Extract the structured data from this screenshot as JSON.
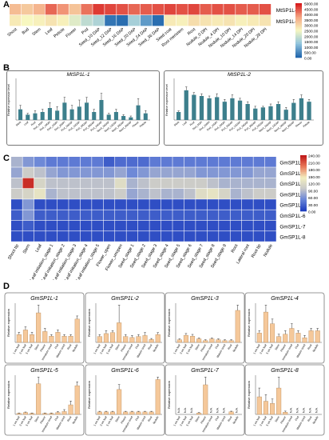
{
  "panels": {
    "a": "A",
    "b": "B",
    "c": "C",
    "d": "D"
  },
  "heatmap_a": {
    "columns": [
      "Shoot",
      "Bud",
      "Stem",
      "Leaf",
      "Petiole",
      "Flower",
      "Pod",
      "Seed_10 DAP",
      "Seed_12 DAP",
      "Seed_16 DAP",
      "Seed_20 DAP",
      "Seed_24 DAP",
      "Seed_36 DAP",
      "Seed coat",
      "Root meristem",
      "Root",
      "Nodule_0 DPI",
      "Nodule_4 DPI",
      "Nodule_10 DPI",
      "Nodule_14 DPI",
      "Nodule_20 DPI",
      "Nodule_28 DPI"
    ],
    "rows": [
      "MtSP1L-1",
      "MtSP1L-2"
    ],
    "values": [
      [
        3400,
        3200,
        3500,
        4300,
        3900,
        3300,
        4200,
        4700,
        4600,
        4500,
        4300,
        4400,
        4500,
        4600,
        4500,
        4600,
        4400,
        4500,
        4500,
        4400,
        4400,
        4500
      ],
      [
        2700,
        2500,
        2600,
        2800,
        2600,
        2200,
        1800,
        1600,
        200,
        100,
        1500,
        700,
        100,
        2700,
        2600,
        2900,
        2800,
        2700,
        2800,
        2600,
        2700,
        2800
      ]
    ],
    "scale_ticks": [
      "5000.00",
      "4500.00",
      "4000.00",
      "3500.00",
      "3000.00",
      "2500.00",
      "2000.00",
      "1500.00",
      "1000.00",
      "500.00",
      "0.00"
    ],
    "colors": [
      "#d7191c",
      "#f4a582",
      "#f7f7c0",
      "#92c5de",
      "#2166ac"
    ]
  },
  "bars_b": [
    {
      "title": "MtSP1L-1",
      "ylabel": "Relative expression level",
      "labels": [
        "Stem",
        "Leaf",
        "Root",
        "Nod_4DPI",
        "Nod_10DPI",
        "Nod_14DPI",
        "Nod_20DPI",
        "Pod_10DAP",
        "Pod_12DAP",
        "Pod_16DAP",
        "Pod_20DAP",
        "Pod_24DAP",
        "Seed_10DAP",
        "Seed_12DAP",
        "Seed_16DAP",
        "Seed_20DAP",
        "Flower",
        "Petiole"
      ],
      "values": [
        0.8,
        0.4,
        0.5,
        0.6,
        0.9,
        0.7,
        1.3,
        0.8,
        1.0,
        1.3,
        0.6,
        1.5,
        0.4,
        0.6,
        0.3,
        0.2,
        1.1,
        0.5
      ],
      "errors": [
        0.3,
        0.1,
        0.2,
        0.2,
        0.4,
        0.3,
        0.4,
        0.3,
        0.5,
        0.4,
        0.2,
        0.5,
        0.1,
        0.2,
        0.1,
        0.1,
        0.5,
        0.2
      ]
    },
    {
      "title": "MtSP1L-2",
      "ylabel": "Relative expression level",
      "labels": [
        "Stem",
        "Leaf",
        "Root",
        "Nod_4DPI",
        "Nod_10DPI",
        "Nod_14DPI",
        "Nod_20DPI",
        "Pod_10DAP",
        "Pod_12DAP",
        "Pod_16DAP",
        "Pod_20DAP",
        "Pod_24DAP",
        "Seed_10DAP",
        "Seed_12DAP",
        "Seed_16DAP",
        "Seed_20DAP",
        "Flower",
        "Petiole"
      ],
      "values": [
        0.7,
        2.6,
        2.2,
        2.1,
        1.9,
        2.0,
        1.6,
        1.9,
        1.7,
        1.4,
        1.0,
        1.1,
        1.2,
        1.4,
        0.9,
        1.5,
        1.9,
        1.6
      ],
      "errors": [
        0.1,
        0.3,
        0.2,
        0.2,
        0.2,
        0.3,
        0.2,
        0.3,
        0.2,
        0.2,
        0.2,
        0.1,
        0.2,
        0.2,
        0.2,
        0.3,
        0.3,
        0.2
      ]
    }
  ],
  "heatmap_c": {
    "columns": [
      "Shoot tip",
      "Stem",
      "Leaf",
      "Leaf initiation_stage 1",
      "Leaf initiation_stage 2",
      "Leaf initiation_stage 3",
      "Leaf initiation_stage 4",
      "Leaf initiation_stage 5",
      "Flower_open",
      "Flower_unopen",
      "Seed_stage 1",
      "Seed_stage 2",
      "Seed_stage 3",
      "Seed_stage 4",
      "Seed_stage 5",
      "Seed_stage 6",
      "Seed_stage 7",
      "Seed_stage 8",
      "Seed_stage 9",
      "Root",
      "Lateral root",
      "Root tip",
      "Nodule"
    ],
    "rows": [
      "GmSP1L-1",
      "GmSP1L-2",
      "GmSP1L-3",
      "GmSP1L-4",
      "GmSP1L-5",
      "GmSP1L-6",
      "GmSP1L-7",
      "GmSP1L-8"
    ],
    "values": [
      [
        80,
        60,
        50,
        40,
        40,
        40,
        40,
        40,
        20,
        30,
        30,
        30,
        40,
        40,
        40,
        40,
        40,
        40,
        40,
        40,
        40,
        40,
        40
      ],
      [
        70,
        100,
        90,
        70,
        60,
        60,
        60,
        60,
        60,
        70,
        50,
        60,
        70,
        70,
        70,
        70,
        60,
        60,
        60,
        60,
        60,
        70,
        70
      ],
      [
        90,
        230,
        110,
        90,
        90,
        90,
        90,
        90,
        90,
        120,
        80,
        90,
        100,
        100,
        100,
        100,
        100,
        90,
        80,
        80,
        80,
        80,
        80
      ],
      [
        100,
        110,
        130,
        80,
        90,
        90,
        90,
        90,
        90,
        100,
        70,
        80,
        90,
        80,
        80,
        90,
        120,
        130,
        110,
        80,
        90,
        100,
        100
      ],
      [
        10,
        60,
        10,
        10,
        10,
        10,
        10,
        10,
        10,
        10,
        10,
        10,
        10,
        10,
        10,
        10,
        10,
        10,
        10,
        10,
        10,
        10,
        10
      ],
      [
        20,
        60,
        20,
        20,
        20,
        20,
        20,
        20,
        20,
        20,
        20,
        20,
        20,
        20,
        20,
        20,
        20,
        20,
        20,
        20,
        20,
        20,
        20
      ],
      [
        10,
        20,
        10,
        10,
        10,
        10,
        10,
        10,
        10,
        10,
        10,
        10,
        10,
        10,
        10,
        10,
        10,
        10,
        10,
        10,
        10,
        10,
        10
      ],
      [
        10,
        10,
        10,
        10,
        10,
        10,
        10,
        10,
        10,
        10,
        10,
        10,
        10,
        10,
        10,
        10,
        10,
        10,
        10,
        10,
        10,
        10,
        10
      ]
    ],
    "scale_ticks": [
      "240.00",
      "210.00",
      "180.00",
      "150.00",
      "120.00",
      "90.00",
      "60.00",
      "30.00",
      "0.00"
    ]
  },
  "bars_d": {
    "ylabel": "Relative expression",
    "labels": [
      "1 cm leaf",
      "3 cm leaf",
      "5 cm leaf",
      "Stem",
      "Flower",
      "Immature seed",
      "Pod",
      "Mature seed",
      "Root",
      "Nodule"
    ],
    "genes": [
      {
        "title": "GmSP1L-1",
        "values": [
          1.0,
          1.6,
          1.0,
          3.8,
          1.4,
          0.8,
          1.3,
          0.8,
          0.8,
          3.0
        ],
        "errors": [
          0.3,
          0.4,
          0.3,
          1.0,
          0.4,
          0.2,
          0.3,
          0.2,
          0.2,
          0.4
        ]
      },
      {
        "title": "GmSP1L-2",
        "values": [
          0.6,
          0.9,
          1.0,
          2.0,
          0.6,
          0.5,
          0.6,
          0.7,
          0.3,
          0.8
        ],
        "errors": [
          0.2,
          0.3,
          0.2,
          1.8,
          0.2,
          0.2,
          0.2,
          0.3,
          0.1,
          0.2
        ]
      },
      {
        "title": "GmSP1L-3",
        "values": [
          0.3,
          0.8,
          0.7,
          0.4,
          0.2,
          0.4,
          0.3,
          0.2,
          0.2,
          3.6
        ],
        "errors": [
          0.1,
          0.2,
          0.2,
          0.1,
          0.1,
          0.1,
          0.1,
          0.1,
          0.1,
          0.6
        ]
      },
      {
        "title": "GmSP1L-4",
        "values": [
          0.8,
          2.6,
          1.6,
          0.5,
          0.7,
          1.2,
          0.8,
          0.4,
          1.0,
          1.0
        ],
        "errors": [
          0.2,
          0.6,
          0.4,
          0.2,
          0.3,
          0.4,
          0.2,
          0.2,
          0.2,
          0.2
        ]
      },
      {
        "title": "GmSP1L-5",
        "values": [
          0.1,
          0.2,
          0.1,
          3.2,
          0.1,
          0.1,
          0.2,
          0.3,
          1.0,
          3.0
        ],
        "errors": [
          0.05,
          0.05,
          0.05,
          0.7,
          0.05,
          0.05,
          0.1,
          0.2,
          0.4,
          0.4
        ]
      },
      {
        "title": "GmSP1L-6",
        "values": [
          0.2,
          0.2,
          0.2,
          2.0,
          0.2,
          0.2,
          0.2,
          0.2,
          0.2,
          2.8
        ],
        "errors": [
          0.05,
          0.05,
          0.05,
          0.4,
          0.05,
          0.05,
          0.05,
          0.05,
          0.05,
          0.2
        ]
      },
      {
        "title": "GmSP1L-7",
        "values": [
          0,
          0,
          0,
          0.1,
          2.3,
          0,
          0,
          0,
          0.2,
          0
        ],
        "errors": [
          0,
          0,
          0,
          0.05,
          0.6,
          0,
          0,
          0,
          0.05,
          0
        ],
        "na": [
          0,
          1,
          2,
          5,
          6,
          7,
          9
        ]
      },
      {
        "title": "GmSP1L-8",
        "values": [
          0.8,
          0.6,
          0.5,
          1.2,
          0.1,
          0,
          0,
          0,
          0,
          0
        ],
        "errors": [
          0.4,
          0.3,
          0.2,
          0.5,
          0.05,
          0,
          0,
          0,
          0,
          0
        ],
        "na": [
          5,
          6,
          7,
          8,
          9
        ]
      }
    ],
    "na_label": "N.A."
  },
  "bar_color": "#f5c89a",
  "bar_edge": "#b98d5d",
  "teal": "#3d7f8c"
}
